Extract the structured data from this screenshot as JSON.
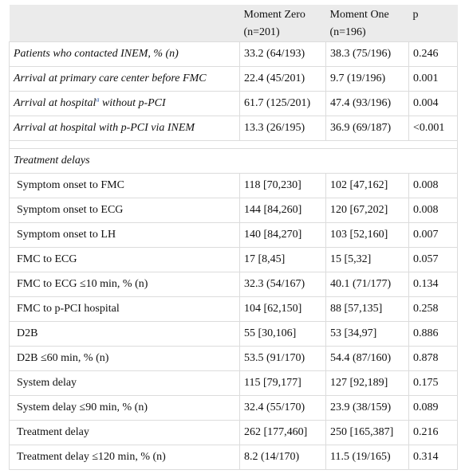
{
  "header": {
    "col1": "",
    "col2_line1": "Moment Zero",
    "col2_line2": "(n=201)",
    "col3_line1": "Moment One",
    "col3_line2": "(n=196)",
    "col4": "p"
  },
  "rows": [
    {
      "label": "Patients who contacted INEM, % (n)",
      "m0": "33.2 (64/193)",
      "m1": "38.3 (75/196)",
      "p": "0.246"
    },
    {
      "label_a": "Arrival at primary care center before FMC",
      "m0": "22.4 (45/201)",
      "m1": "9.7 (19/196)",
      "p": "0.001"
    },
    {
      "label_a": "Arrival at hospital",
      "sup": "a",
      "label_b": " without p-PCI",
      "m0": "61.7 (125/201)",
      "m1": "47.4 (93/196)",
      "p": "0.004"
    },
    {
      "label": "Arrival at hospital with p-PCI via INEM",
      "m0": "13.3 (26/195)",
      "m1": "36.9 (69/187)",
      "p": "<0.001"
    }
  ],
  "section_title": "Treatment delays",
  "delays": [
    {
      "label": "Symptom onset to FMC",
      "m0": "118 [70,230]",
      "m1": "102 [47,162]",
      "p": "0.008"
    },
    {
      "label": "Symptom onset to ECG",
      "m0": "144 [84,260]",
      "m1": "120 [67,202]",
      "p": "0.008"
    },
    {
      "label": "Symptom onset to LH",
      "m0": "140 [84,270]",
      "m1": "103 [52,160]",
      "p": "0.007"
    },
    {
      "label": "FMC to ECG",
      "m0": "17 [8,45]",
      "m1": "15 [5,32]",
      "p": "0.057"
    },
    {
      "label": "FMC to ECG ≤10 min, % (n)",
      "m0": "32.3 (54/167)",
      "m1": "40.1 (71/177)",
      "p": "0.134"
    },
    {
      "label": "FMC to p-PCI hospital",
      "m0": "104 [62,150]",
      "m1": "88 [57,135]",
      "p": "0.258"
    },
    {
      "label": "D2B",
      "m0": "55 [30,106]",
      "m1": "53 [34,97]",
      "p": "0.886"
    },
    {
      "label": "D2B ≤60 min, % (n)",
      "m0": "53.5 (91/170)",
      "m1": "54.4 (87/160)",
      "p": "0.878"
    },
    {
      "label": "System delay",
      "m0": "115 [79,177]",
      "m1": "127 [92,189]",
      "p": "0.175"
    },
    {
      "label": "System delay ≤90 min, % (n)",
      "m0": "32.4 (55/170)",
      "m1": "23.9 (38/159)",
      "p": "0.089"
    },
    {
      "label": "Treatment delay",
      "m0": "262 [177,460]",
      "m1": "250 [165,387]",
      "p": "0.216"
    },
    {
      "label": "Treatment delay ≤120 min, % (n)",
      "m0": "8.2 (14/170)",
      "m1": "11.5 (19/165)",
      "p": "0.314"
    }
  ]
}
